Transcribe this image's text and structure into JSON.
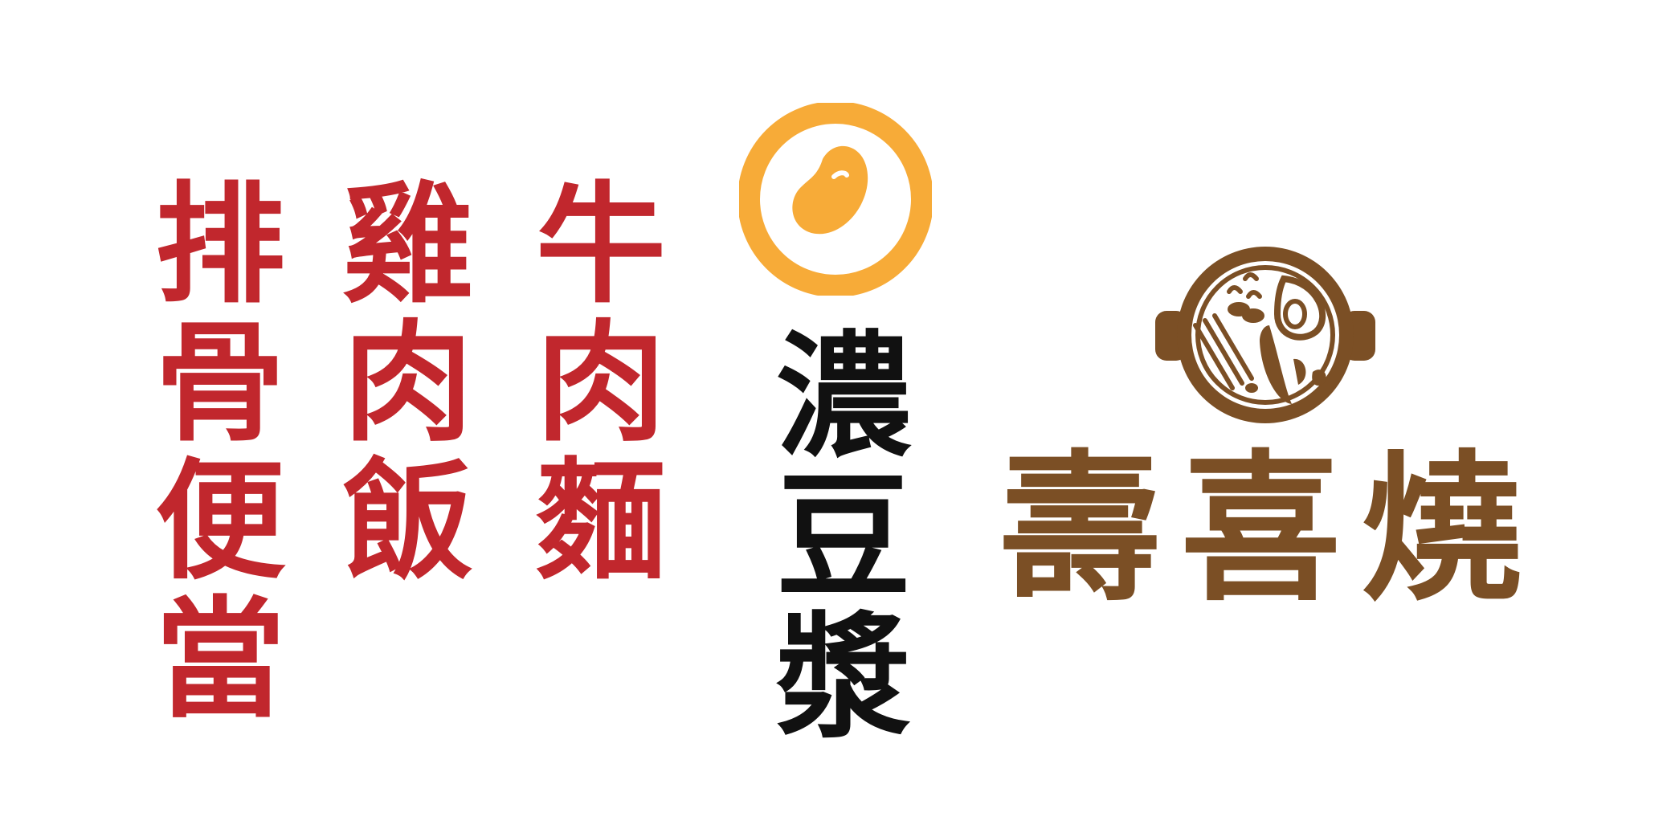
{
  "menu_columns": [
    {
      "chars": [
        "排",
        "骨",
        "便",
        "當"
      ]
    },
    {
      "chars": [
        "雞",
        "肉",
        "飯"
      ]
    },
    {
      "chars": [
        "牛",
        "肉",
        "麵"
      ]
    }
  ],
  "soy_milk": {
    "chars": [
      "濃",
      "豆",
      "漿"
    ]
  },
  "sukiyaki": {
    "chars": [
      "壽",
      "喜",
      "燒"
    ]
  },
  "colors": {
    "red": "#c1272d",
    "black": "#111111",
    "brown": "#7b4f25",
    "orange": "#f7ab38",
    "background": "#ffffff"
  },
  "icons": [
    "soybean-icon",
    "hotpot-icon"
  ]
}
